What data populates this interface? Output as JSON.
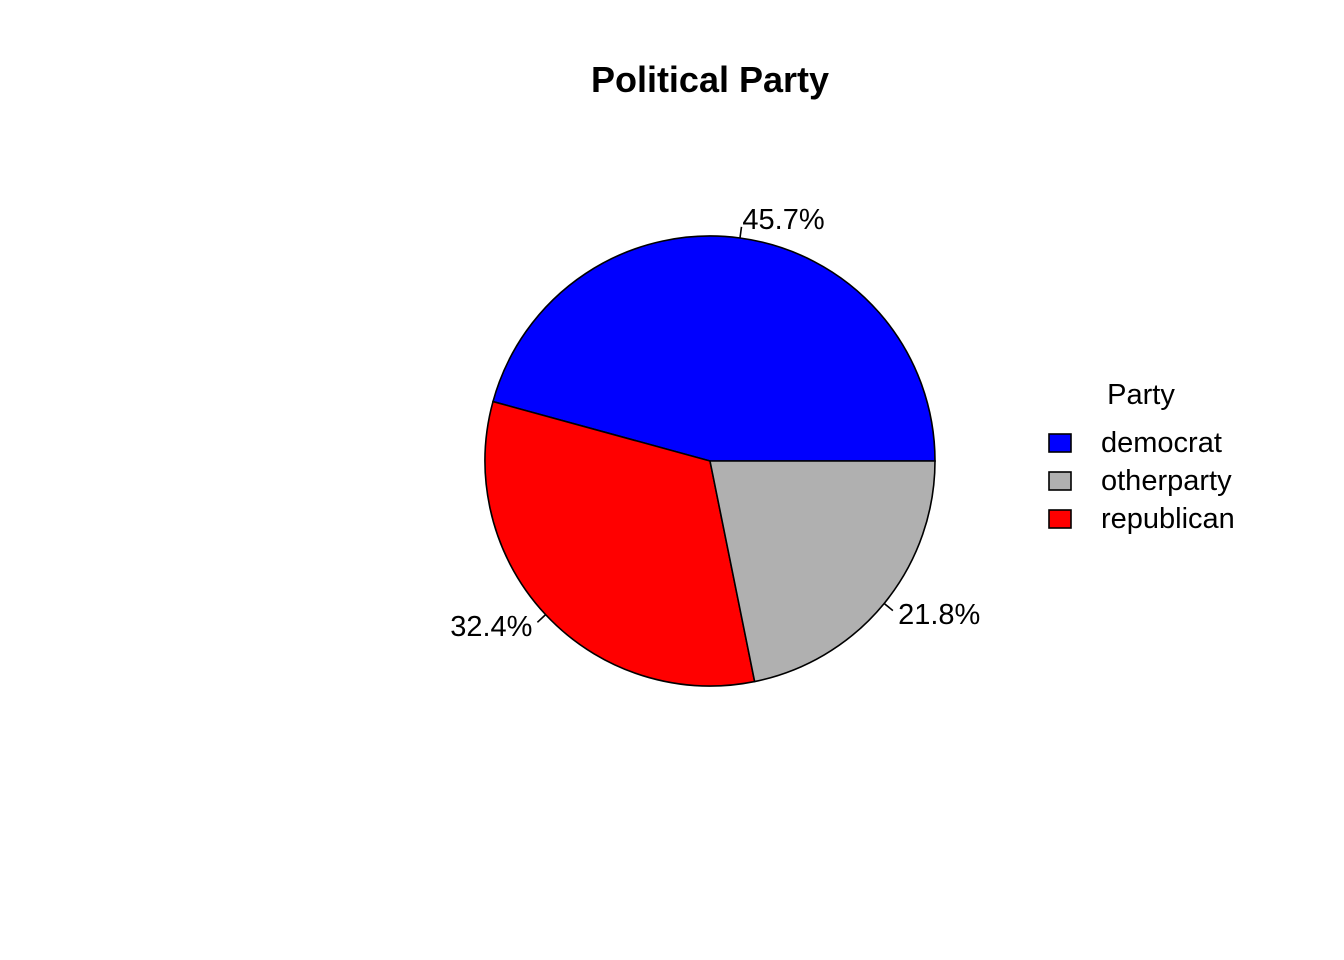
{
  "chart_data": {
    "type": "pie",
    "title": "Political Party",
    "slices": [
      {
        "label": "democrat",
        "value": 45.7,
        "value_label": "45.7%",
        "color": "#0000FF"
      },
      {
        "label": "republican",
        "value": 32.4,
        "value_label": "32.4%",
        "color": "#FF0000"
      },
      {
        "label": "otherparty",
        "value": 21.8,
        "value_label": "21.8%",
        "color": "#B0B0B0"
      }
    ],
    "legend": {
      "title": "Party",
      "placement": "right",
      "entries": [
        {
          "label": "democrat",
          "color": "#0000FF"
        },
        {
          "label": "otherparty",
          "color": "#B0B0B0"
        },
        {
          "label": "republican",
          "color": "#FF0000"
        }
      ]
    }
  }
}
